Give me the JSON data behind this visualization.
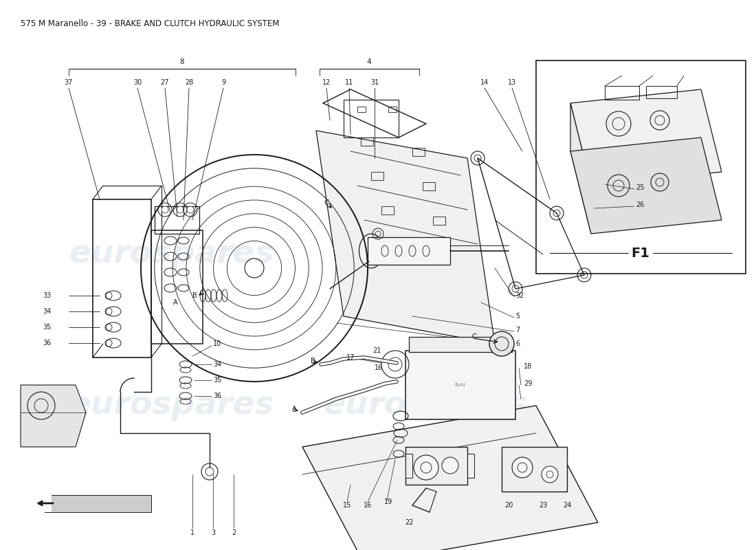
{
  "title": "575 M Maranello - 39 - BRAKE AND CLUTCH HYDRAULIC SYSTEM",
  "title_fontsize": 8.5,
  "bg": "#ffffff",
  "lc": "#1a1a1a",
  "wm_color": "#b8c8d8",
  "wm_alpha": 0.3,
  "wm_text": "eurospares",
  "f1_label": "F1"
}
